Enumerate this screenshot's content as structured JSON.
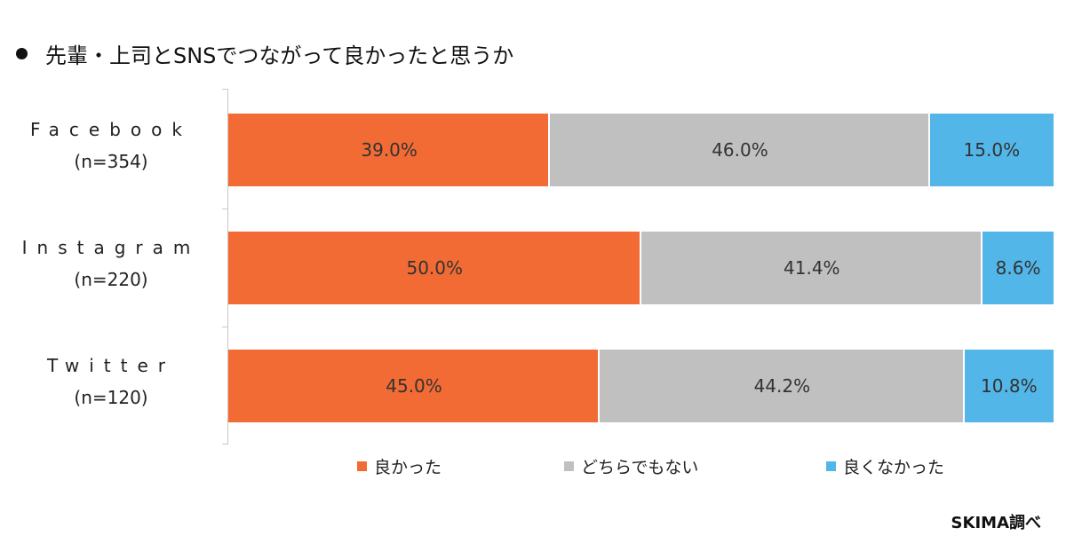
{
  "chart_data": {
    "type": "bar",
    "orientation": "horizontal",
    "stacked": true,
    "title": "先輩・上司とSNSでつながって良かったと思うか",
    "categories": [
      {
        "name": "Facebook",
        "n": "(n=354)"
      },
      {
        "name": "Instagram",
        "n": "(n=220)"
      },
      {
        "name": "Twitter",
        "n": "(n=120)"
      }
    ],
    "series": [
      {
        "name": "良かった",
        "color": "#f26b34",
        "values": [
          39.0,
          50.0,
          45.0
        ],
        "labels": [
          "39.0%",
          "50.0%",
          "45.0%"
        ]
      },
      {
        "name": "どちらでもない",
        "color": "#c0c0c0",
        "values": [
          46.0,
          41.4,
          44.2
        ],
        "labels": [
          "46.0%",
          "41.4%",
          "44.2%"
        ]
      },
      {
        "name": "良くなかった",
        "color": "#52b6e8",
        "values": [
          15.0,
          8.6,
          10.8
        ],
        "labels": [
          "15.0%",
          "8.6%",
          "10.8%"
        ]
      }
    ],
    "xlim": [
      0,
      100
    ],
    "legend_position": "bottom",
    "grid": false
  },
  "source": "SKIMA調べ"
}
